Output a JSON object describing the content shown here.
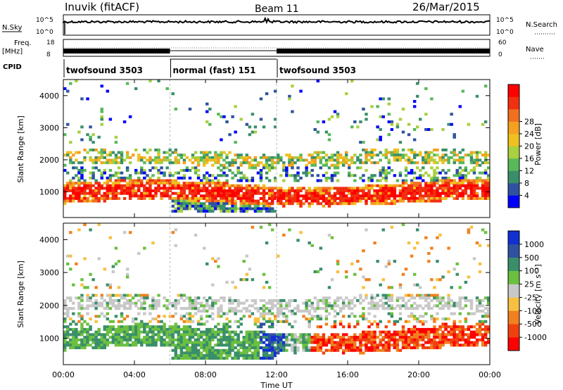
{
  "header": {
    "station": "Inuvik (fitACF)",
    "beam": "Beam 11",
    "date": "26/Mar/2015"
  },
  "panels": {
    "nsky_label": "N.Sky",
    "nsearch_label": "N.Search",
    "noise_ticks_left": [
      "10^5",
      "10^0"
    ],
    "noise_ticks_right": [
      "10^5",
      "10^0"
    ],
    "freq_label_1": "Freq.",
    "freq_label_2": "[MHz]",
    "freq_ticks": [
      "18",
      "8"
    ],
    "nave_label": "Nave",
    "nave_ticks": [
      "60",
      "0"
    ],
    "cpid_label": "CPID"
  },
  "cpid_segments": [
    {
      "label": "twofsound 3503",
      "start_h": 0,
      "end_h": 6
    },
    {
      "label": "normal (fast) 151",
      "start_h": 6,
      "end_h": 12
    },
    {
      "label": "twofsound 3503",
      "start_h": 12,
      "end_h": 24
    }
  ],
  "chart_data": [
    {
      "type": "heatmap",
      "quantity": "power",
      "ylabel": "Slant Range [km]",
      "yticks": [
        "1000",
        "2000",
        "3000",
        "4000"
      ],
      "ylim": [
        200,
        4500
      ],
      "colorbar_label": "Power [dB]",
      "colorbar_ticks": [
        "4",
        "8",
        "12",
        "16",
        "20",
        "24",
        "28"
      ],
      "colors": [
        "#0000ff",
        "#2f52a0",
        "#3a8f6a",
        "#58b85a",
        "#a8d040",
        "#f0c020",
        "#f4a020",
        "#f07020",
        "#f03010",
        "#ff0000"
      ]
    },
    {
      "type": "heatmap",
      "quantity": "velocity",
      "ylabel": "Slant Range [km]",
      "yticks": [
        "1000",
        "2000",
        "3000",
        "4000"
      ],
      "ylim": [
        200,
        4500
      ],
      "xlabel": "Time UT",
      "xticks": [
        "00:00",
        "04:00",
        "08:00",
        "12:00",
        "16:00",
        "20:00",
        "00:00"
      ],
      "xlim_h": [
        0,
        24
      ],
      "colorbar_label": "Velocity [m s⁻¹]",
      "colorbar_ticks": [
        "1000",
        "500",
        "100",
        "25",
        "-25",
        "-100",
        "-500",
        "-1000"
      ],
      "colors": [
        "#1030d0",
        "#2f52a0",
        "#3a8f6a",
        "#6cc040",
        "#c8c8c8",
        "#f8c040",
        "#f08020",
        "#f04010",
        "#ff0000"
      ]
    }
  ]
}
